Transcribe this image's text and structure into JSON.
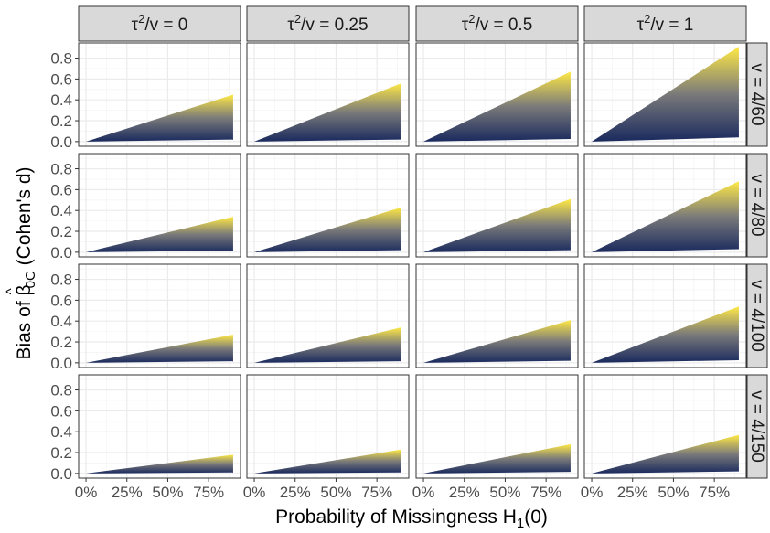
{
  "chart_data": {
    "type": "area",
    "xlabel": "Probability of Missingness H₁(0)",
    "ylabel": "Bias of β̂₀C (Cohen's d)",
    "ylabel_parts": {
      "prefix": "Bias of ",
      "symbol": "β",
      "hat": "^",
      "subscript": "0C",
      "suffix": " (Cohen's d)"
    },
    "xlabel_parts": {
      "prefix": "Probability of Missingness H",
      "subscript": "1",
      "suffix": "(0)"
    },
    "x_ticks": [
      0,
      25,
      50,
      75
    ],
    "x_tick_labels": [
      "0%",
      "25%",
      "50%",
      "75%"
    ],
    "xlim": [
      -4.5,
      94.5
    ],
    "y_ticks": [
      0,
      0.2,
      0.4,
      0.6,
      0.8
    ],
    "y_tick_labels": [
      "0.0",
      "0.2",
      "0.4",
      "0.6",
      "0.8"
    ],
    "ylim": [
      -0.045,
      0.945
    ],
    "grid": true,
    "x_range": [
      0,
      90
    ],
    "columns": [
      {
        "label": "τ²/v = 0",
        "base": "τ",
        "sup": "2",
        "rest": "/v = 0"
      },
      {
        "label": "τ²/v = 0.25",
        "base": "τ",
        "sup": "2",
        "rest": "/v = 0.25"
      },
      {
        "label": "τ²/v = 0.5",
        "base": "τ",
        "sup": "2",
        "rest": "/v = 0.5"
      },
      {
        "label": "τ²/v = 1",
        "base": "τ",
        "sup": "2",
        "rest": "/v = 1"
      }
    ],
    "rows": [
      {
        "label": "v = 4/60"
      },
      {
        "label": "v = 4/80"
      },
      {
        "label": "v = 4/100"
      },
      {
        "label": "v = 4/150"
      }
    ],
    "panels": [
      [
        {
          "max_at_90": 0.45,
          "min_at_90": 0.02
        },
        {
          "max_at_90": 0.56,
          "min_at_90": 0.02
        },
        {
          "max_at_90": 0.67,
          "min_at_90": 0.025
        },
        {
          "max_at_90": 0.91,
          "min_at_90": 0.04
        }
      ],
      [
        {
          "max_at_90": 0.34,
          "min_at_90": 0.015
        },
        {
          "max_at_90": 0.43,
          "min_at_90": 0.02
        },
        {
          "max_at_90": 0.51,
          "min_at_90": 0.02
        },
        {
          "max_at_90": 0.68,
          "min_at_90": 0.03
        }
      ],
      [
        {
          "max_at_90": 0.27,
          "min_at_90": 0.015
        },
        {
          "max_at_90": 0.34,
          "min_at_90": 0.015
        },
        {
          "max_at_90": 0.41,
          "min_at_90": 0.02
        },
        {
          "max_at_90": 0.54,
          "min_at_90": 0.025
        }
      ],
      [
        {
          "max_at_90": 0.18,
          "min_at_90": 0.01
        },
        {
          "max_at_90": 0.23,
          "min_at_90": 0.01
        },
        {
          "max_at_90": 0.28,
          "min_at_90": 0.015
        },
        {
          "max_at_90": 0.37,
          "min_at_90": 0.02
        }
      ]
    ],
    "colors": {
      "low": "#1a2a5e",
      "mid": "#7a7a7a",
      "high": "#ffe945",
      "strip_fill": "#d9d9d9",
      "strip_border": "#333333",
      "grid_major": "#ebebeb",
      "grid_minor": "#f5f5f5",
      "panel_border": "#333333"
    }
  }
}
